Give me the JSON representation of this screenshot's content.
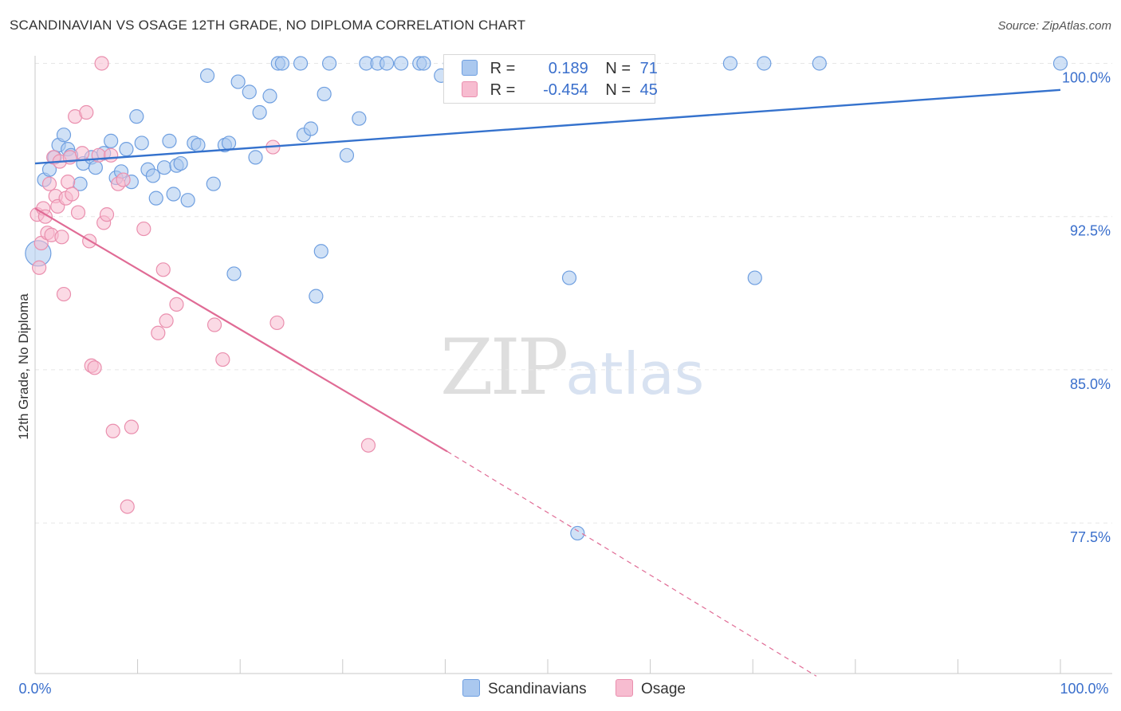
{
  "title": "SCANDINAVIAN VS OSAGE 12TH GRADE, NO DIPLOMA CORRELATION CHART",
  "source": "Source: ZipAtlas.com",
  "watermark": {
    "zip": "ZIP",
    "atlas": "atlas"
  },
  "legend": {
    "r_label": "R =",
    "n_label": "N =",
    "rows": [
      {
        "r": "0.189",
        "n": "71"
      },
      {
        "r": "-0.454",
        "n": "45"
      }
    ]
  },
  "colors": {
    "blue_fill": "#aac8ef",
    "blue_stroke": "#6f9fe0",
    "blue_line": "#3572cd",
    "pink_fill": "#f7bcd0",
    "pink_stroke": "#ea8fae",
    "pink_line": "#e06b95",
    "tick_label": "#3a6fcc",
    "grid": "#e6e6e6"
  },
  "chart_data": {
    "type": "scatter",
    "title": "SCANDINAVIAN VS OSAGE 12TH GRADE, NO DIPLOMA CORRELATION CHART",
    "xlabel": "",
    "ylabel": "12th Grade, No Diploma",
    "xlim": [
      0,
      100
    ],
    "ylim": [
      70.0,
      101.3
    ],
    "x_ticks": [
      "0.0%",
      "100.0%"
    ],
    "y_ticks": [
      {
        "value": 100.0,
        "label": "100.0%"
      },
      {
        "value": 92.5,
        "label": "92.5%"
      },
      {
        "value": 85.0,
        "label": "85.0%"
      },
      {
        "value": 77.5,
        "label": "77.5%"
      }
    ],
    "grid": true,
    "legend_position": "bottom-center",
    "series": [
      {
        "name": "Scandinavians",
        "r": 0.189,
        "n": 71,
        "trend": [
          [
            0,
            95.1
          ],
          [
            100,
            98.7
          ]
        ],
        "points": [
          [
            0.3,
            90.7
          ],
          [
            0.9,
            94.3
          ],
          [
            1.4,
            94.8
          ],
          [
            1.9,
            95.4
          ],
          [
            2.3,
            96.0
          ],
          [
            2.8,
            96.5
          ],
          [
            3.2,
            95.8
          ],
          [
            3.5,
            95.5
          ],
          [
            4.4,
            94.1
          ],
          [
            4.7,
            95.1
          ],
          [
            5.5,
            95.4
          ],
          [
            5.9,
            94.9
          ],
          [
            6.7,
            95.6
          ],
          [
            7.4,
            96.2
          ],
          [
            7.9,
            94.4
          ],
          [
            8.4,
            94.7
          ],
          [
            8.9,
            95.8
          ],
          [
            9.4,
            94.2
          ],
          [
            9.9,
            97.4
          ],
          [
            10.4,
            96.1
          ],
          [
            11.0,
            94.8
          ],
          [
            11.5,
            94.5
          ],
          [
            11.8,
            93.4
          ],
          [
            12.6,
            94.9
          ],
          [
            13.1,
            96.2
          ],
          [
            13.5,
            93.6
          ],
          [
            13.8,
            95.0
          ],
          [
            14.2,
            95.1
          ],
          [
            14.9,
            93.3
          ],
          [
            15.5,
            96.1
          ],
          [
            15.9,
            96.0
          ],
          [
            16.8,
            99.4
          ],
          [
            17.4,
            94.1
          ],
          [
            18.5,
            96.0
          ],
          [
            18.9,
            96.1
          ],
          [
            19.4,
            89.7
          ],
          [
            19.8,
            99.1
          ],
          [
            20.9,
            98.6
          ],
          [
            21.5,
            95.4
          ],
          [
            21.9,
            97.6
          ],
          [
            22.9,
            98.4
          ],
          [
            23.7,
            100.0
          ],
          [
            24.1,
            100.0
          ],
          [
            25.9,
            100.0
          ],
          [
            26.2,
            96.5
          ],
          [
            26.9,
            96.8
          ],
          [
            27.4,
            88.6
          ],
          [
            27.9,
            90.8
          ],
          [
            28.2,
            98.5
          ],
          [
            28.7,
            100.0
          ],
          [
            30.4,
            95.5
          ],
          [
            31.6,
            97.3
          ],
          [
            32.3,
            100.0
          ],
          [
            33.4,
            100.0
          ],
          [
            34.3,
            100.0
          ],
          [
            35.7,
            100.0
          ],
          [
            37.5,
            100.0
          ],
          [
            37.9,
            100.0
          ],
          [
            39.6,
            99.4
          ],
          [
            40.5,
            100.0
          ],
          [
            41.6,
            100.0
          ],
          [
            47.3,
            100.0
          ],
          [
            50.7,
            100.0
          ],
          [
            51.4,
            100.0
          ],
          [
            52.1,
            89.5
          ],
          [
            52.9,
            77.0
          ],
          [
            70.2,
            89.5
          ],
          [
            67.8,
            100.0
          ],
          [
            71.1,
            100.0
          ],
          [
            76.5,
            100.0
          ],
          [
            100.0,
            100.0
          ]
        ]
      },
      {
        "name": "Osage",
        "r": -0.454,
        "n": 45,
        "trend": [
          [
            0,
            92.9
          ],
          [
            40.2,
            81.0
          ]
        ],
        "trend_dashed": [
          [
            40.2,
            81.0
          ],
          [
            76.2,
            70.0
          ]
        ],
        "points": [
          [
            0.2,
            92.6
          ],
          [
            0.4,
            90.0
          ],
          [
            0.6,
            91.2
          ],
          [
            0.8,
            92.9
          ],
          [
            1.0,
            92.5
          ],
          [
            1.2,
            91.7
          ],
          [
            1.4,
            94.1
          ],
          [
            1.6,
            91.6
          ],
          [
            1.8,
            95.4
          ],
          [
            2.0,
            93.5
          ],
          [
            2.2,
            93.0
          ],
          [
            2.4,
            95.2
          ],
          [
            2.6,
            91.5
          ],
          [
            2.8,
            88.7
          ],
          [
            3.0,
            93.4
          ],
          [
            3.2,
            94.2
          ],
          [
            3.4,
            95.4
          ],
          [
            3.6,
            93.6
          ],
          [
            3.9,
            97.4
          ],
          [
            4.2,
            92.7
          ],
          [
            4.6,
            95.6
          ],
          [
            5.0,
            97.6
          ],
          [
            5.3,
            91.3
          ],
          [
            5.5,
            85.2
          ],
          [
            5.8,
            85.1
          ],
          [
            6.2,
            95.5
          ],
          [
            6.5,
            100.0
          ],
          [
            6.7,
            92.2
          ],
          [
            7.0,
            92.6
          ],
          [
            7.4,
            95.5
          ],
          [
            7.6,
            82.0
          ],
          [
            8.1,
            94.1
          ],
          [
            8.6,
            94.3
          ],
          [
            9.0,
            78.3
          ],
          [
            9.4,
            82.2
          ],
          [
            10.6,
            91.9
          ],
          [
            12.0,
            86.8
          ],
          [
            12.5,
            89.9
          ],
          [
            12.8,
            87.4
          ],
          [
            13.8,
            88.2
          ],
          [
            17.5,
            87.2
          ],
          [
            18.3,
            85.5
          ],
          [
            23.2,
            95.9
          ],
          [
            23.6,
            87.3
          ],
          [
            32.5,
            81.3
          ]
        ]
      }
    ]
  },
  "bottom_legend": [
    {
      "label": "Scandinavians"
    },
    {
      "label": "Osage"
    }
  ]
}
